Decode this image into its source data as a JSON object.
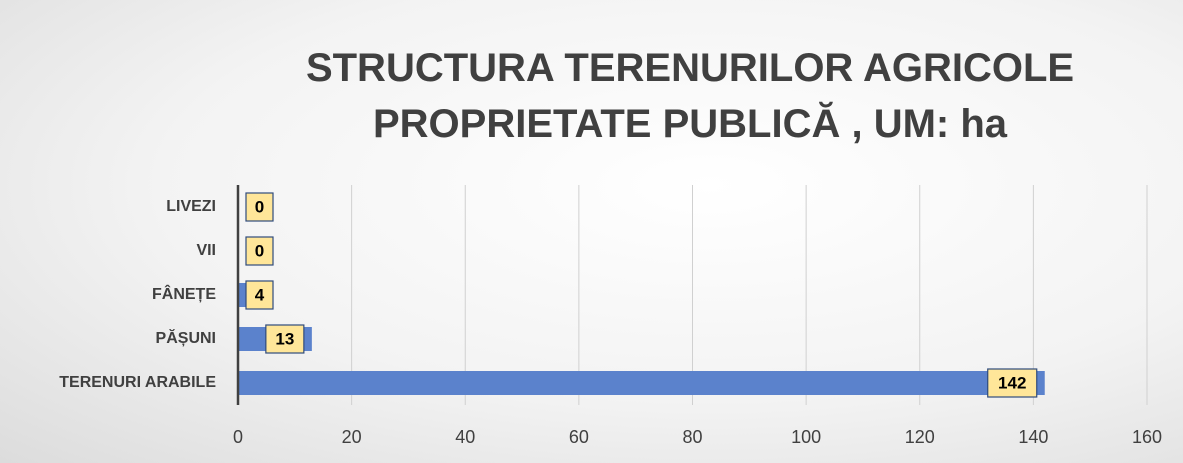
{
  "chart_data": {
    "type": "bar",
    "orientation": "horizontal",
    "title": "STRUCTURA TERENURILOR AGRICOLE PROPRIETATE PUBLICĂ , UM: ha",
    "categories": [
      "LIVEZI",
      "VII",
      "FÂNEȚE",
      "PĂȘUNI",
      "TERENURI ARABILE"
    ],
    "values": [
      0,
      0,
      4,
      13,
      142
    ],
    "color": "#5b82cc",
    "xlim": [
      0,
      160
    ],
    "xticks": [
      0,
      20,
      40,
      60,
      80,
      100,
      120,
      140,
      160
    ],
    "grid": true
  }
}
